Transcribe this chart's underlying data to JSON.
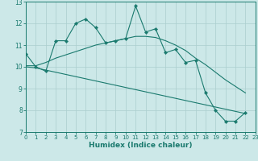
{
  "xlabel": "Humidex (Indice chaleur)",
  "background_color": "#cce8e8",
  "grid_color": "#aacece",
  "line_color": "#1a7a6e",
  "xlim": [
    0,
    23
  ],
  "ylim": [
    7,
    13
  ],
  "yticks": [
    7,
    8,
    9,
    10,
    11,
    12,
    13
  ],
  "xticks": [
    0,
    1,
    2,
    3,
    4,
    5,
    6,
    7,
    8,
    9,
    10,
    11,
    12,
    13,
    14,
    15,
    16,
    17,
    18,
    19,
    20,
    21,
    22,
    23
  ],
  "series1_x": [
    0,
    1,
    2,
    3,
    4,
    5,
    6,
    7,
    8,
    9,
    10,
    11,
    12,
    13,
    14,
    15,
    16,
    17,
    18,
    19,
    20,
    21,
    22
  ],
  "series1_y": [
    10.6,
    10.0,
    9.8,
    11.2,
    11.2,
    12.0,
    12.2,
    11.8,
    11.1,
    11.2,
    11.3,
    12.8,
    11.6,
    11.75,
    10.65,
    10.8,
    10.2,
    10.3,
    8.8,
    8.0,
    7.5,
    7.5,
    7.9
  ],
  "series2_x": [
    0,
    1,
    2,
    3,
    4,
    5,
    6,
    7,
    8,
    9,
    10,
    11,
    12,
    13,
    14,
    15,
    16,
    17,
    18,
    19,
    20,
    21,
    22
  ],
  "series2_y": [
    10.05,
    10.05,
    10.2,
    10.4,
    10.55,
    10.7,
    10.85,
    11.0,
    11.1,
    11.2,
    11.3,
    11.4,
    11.4,
    11.35,
    11.2,
    11.0,
    10.75,
    10.4,
    10.1,
    9.75,
    9.4,
    9.1,
    8.8
  ],
  "series3_x": [
    0,
    1,
    2,
    3,
    4,
    5,
    6,
    7,
    8,
    9,
    10,
    11,
    12,
    13,
    14,
    15,
    16,
    17,
    18,
    19,
    20,
    21,
    22
  ],
  "series3_y": [
    10.0,
    9.95,
    9.85,
    9.75,
    9.65,
    9.55,
    9.45,
    9.35,
    9.25,
    9.15,
    9.05,
    8.95,
    8.85,
    8.75,
    8.65,
    8.55,
    8.45,
    8.35,
    8.25,
    8.15,
    8.05,
    7.95,
    7.85
  ]
}
